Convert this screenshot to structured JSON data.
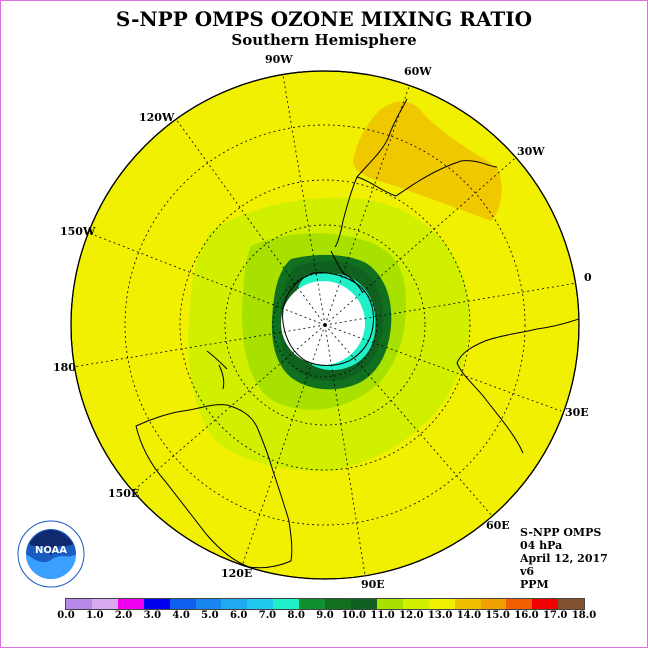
{
  "title": "S-NPP OMPS OZONE MIXING RATIO",
  "subtitle": "Southern Hemisphere",
  "longitude_labels": [
    {
      "text": "90W",
      "key": "90W"
    },
    {
      "text": "60W",
      "key": "60W"
    },
    {
      "text": "120W",
      "key": "120W"
    },
    {
      "text": "30W",
      "key": "30W"
    },
    {
      "text": "150W",
      "key": "150W"
    },
    {
      "text": "0",
      "key": "0"
    },
    {
      "text": "180",
      "key": "180"
    },
    {
      "text": "30E",
      "key": "30E"
    },
    {
      "text": "150E",
      "key": "150E"
    },
    {
      "text": "60E",
      "key": "60E"
    },
    {
      "text": "120E",
      "key": "120E"
    },
    {
      "text": "90E",
      "key": "90E"
    }
  ],
  "info": {
    "instrument": "S-NPP OMPS",
    "level": "04 hPa",
    "date": "April 12, 2017",
    "version": "v6",
    "units": "PPM"
  },
  "logo": {
    "text": "NOAA"
  },
  "colorbar": {
    "colors": [
      "#b888e8",
      "#d8a8f0",
      "#f000f0",
      "#0000f0",
      "#1060f0",
      "#1888f0",
      "#20a8f0",
      "#20c8f0",
      "#20f0c8",
      "#109030",
      "#107020",
      "#106020",
      "#a8e000",
      "#d0f000",
      "#f0f000",
      "#f0c000",
      "#f0a000",
      "#f06000",
      "#f00000",
      "#805030"
    ],
    "ticks": [
      "0.0",
      "1.0",
      "2.0",
      "3.0",
      "4.0",
      "5.0",
      "6.0",
      "7.0",
      "8.0",
      "9.0",
      "10.0",
      "11.0",
      "12.0",
      "13.0",
      "14.0",
      "15.0",
      "16.0",
      "17.0",
      "18.0"
    ]
  },
  "map_colors": {
    "background": "#f0f000",
    "orange": "#f0c800",
    "light_green": "#d0f000",
    "green": "#a8e000",
    "dark_green": "#107020",
    "darker_green": "#106020",
    "teal": "#20f0c8",
    "pole": "#ffffff",
    "coast": "#000000"
  }
}
